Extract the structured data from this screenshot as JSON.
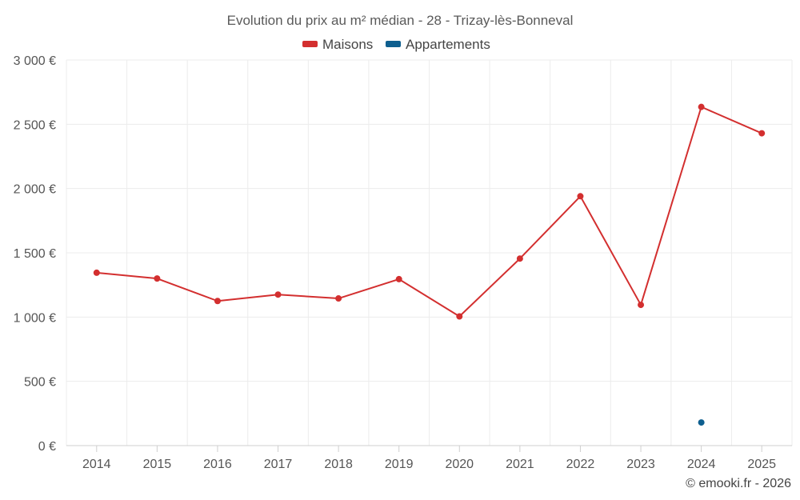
{
  "chart_data": {
    "type": "line",
    "title": "Evolution du prix au m² médian - 28 - Trizay-lès-Bonneval",
    "categories": [
      "2014",
      "2015",
      "2016",
      "2017",
      "2018",
      "2019",
      "2020",
      "2021",
      "2022",
      "2023",
      "2024",
      "2025"
    ],
    "y_ticks": [
      0,
      500,
      1000,
      1500,
      2000,
      2500,
      3000
    ],
    "y_tick_labels": [
      "0 €",
      "500 €",
      "1 000 €",
      "1 500 €",
      "2 000 €",
      "2 500 €",
      "3 000 €"
    ],
    "ylim": [
      0,
      3000
    ],
    "grid": true,
    "legend_position": "top-center",
    "series": [
      {
        "name": "Maisons",
        "color": "#d32f2f",
        "values": [
          1345,
          1300,
          1125,
          1175,
          1145,
          1295,
          1005,
          1455,
          1940,
          1095,
          2635,
          2430
        ]
      },
      {
        "name": "Appartements",
        "color": "#0e5f8f",
        "values": [
          null,
          null,
          null,
          null,
          null,
          null,
          null,
          null,
          null,
          null,
          180,
          null
        ]
      }
    ]
  },
  "credit": "© emooki.fr - 2026"
}
